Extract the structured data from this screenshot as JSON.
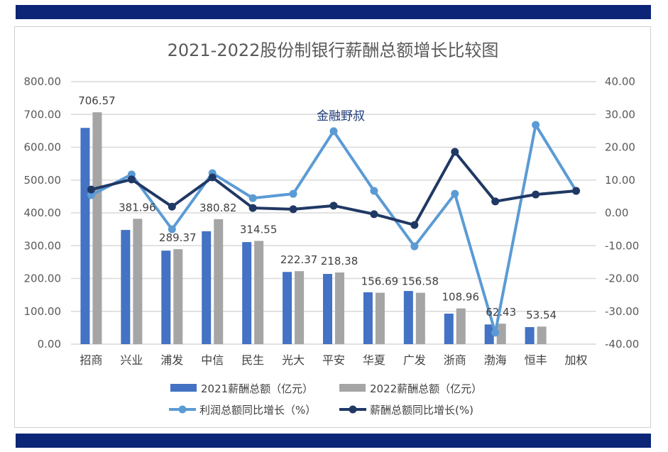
{
  "chart_data": {
    "type": "bar+line",
    "title": "2021-2022股份制银行薪酬总额增长比较图",
    "watermark": "金融野叔",
    "categories": [
      "招商",
      "兴业",
      "浦发",
      "中信",
      "民生",
      "光大",
      "平安",
      "华夏",
      "广发",
      "浙商",
      "渤海",
      "恒丰",
      "加权"
    ],
    "left_axis": {
      "min": 0,
      "max": 800,
      "step": 100,
      "ticks": [
        "0.00",
        "100.00",
        "200.00",
        "300.00",
        "400.00",
        "500.00",
        "600.00",
        "700.00",
        "800.00"
      ]
    },
    "right_axis": {
      "min": -40,
      "max": 40,
      "step": 10,
      "ticks": [
        "-40.00",
        "-30.00",
        "-20.00",
        "-10.00",
        "0.00",
        "10.00",
        "20.00",
        "30.00",
        "40.00"
      ]
    },
    "grid": true,
    "legend_position": "bottom",
    "series": [
      {
        "name": "2021薪酬总额（亿元）",
        "type": "bar",
        "axis": "left",
        "color": "#4472c4",
        "values": [
          659,
          348,
          285,
          344,
          311,
          220,
          214,
          158,
          162,
          93,
          60,
          52,
          null
        ]
      },
      {
        "name": "2022薪酬总额（亿元）",
        "type": "bar",
        "axis": "left",
        "color": "#a5a5a5",
        "values": [
          706.57,
          381.96,
          289.37,
          380.82,
          314.55,
          222.37,
          218.38,
          156.69,
          156.58,
          108.96,
          62.43,
          53.54,
          null
        ],
        "labels": [
          "706.57",
          "381.96",
          "289.37",
          "380.82",
          "314.55",
          "222.37",
          "218.38",
          "156.69",
          "156.58",
          "108.96",
          "62.43",
          "53.54",
          ""
        ]
      },
      {
        "name": "利润总额同比增长（%）",
        "type": "line",
        "axis": "right",
        "color": "#5b9bd5",
        "values": [
          5.4,
          11.7,
          -5.0,
          12.1,
          4.5,
          5.8,
          24.9,
          6.7,
          -10.2,
          5.8,
          -36.5,
          26.8,
          6.7
        ]
      },
      {
        "name": "薪酬总额同比增长(%)",
        "type": "line",
        "axis": "right",
        "color": "#203864",
        "values": [
          7.1,
          10.2,
          1.9,
          10.8,
          1.5,
          1.1,
          2.2,
          -0.4,
          -3.7,
          18.6,
          3.5,
          5.6,
          6.7
        ]
      }
    ]
  }
}
